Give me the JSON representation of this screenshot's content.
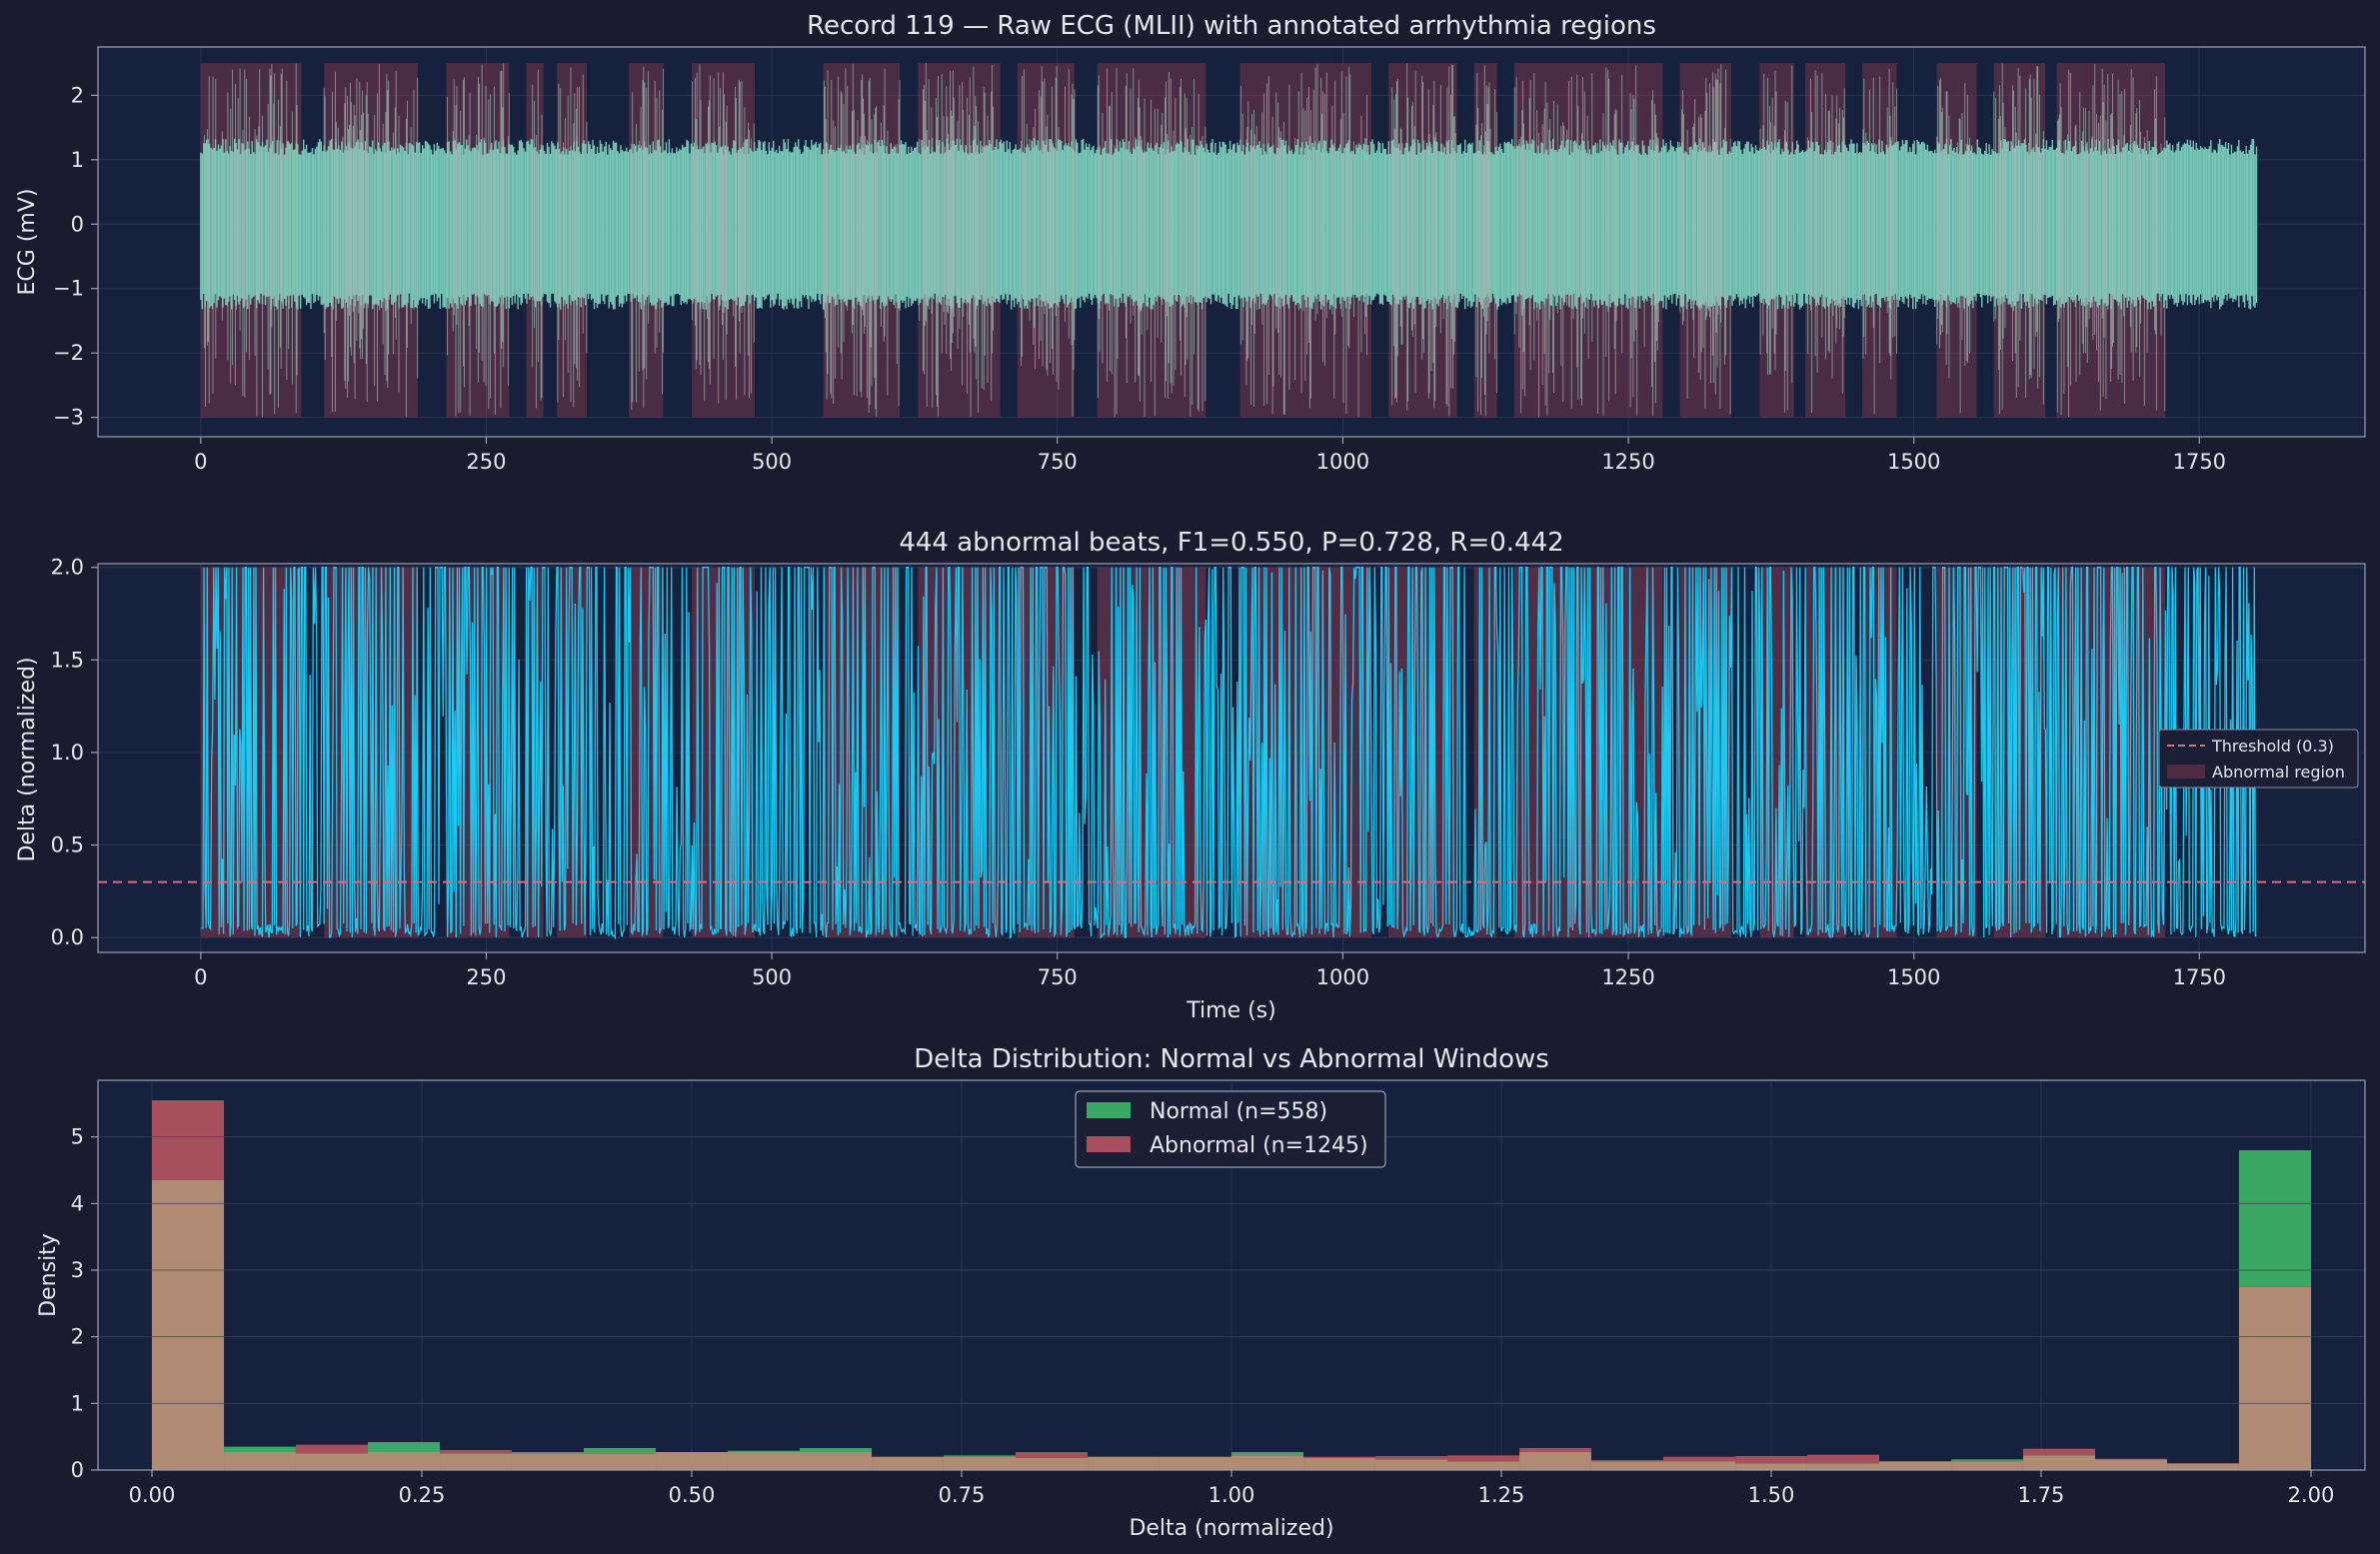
{
  "colors": {
    "figure_bg": "#1a1b2e",
    "axes_bg": "#16213e",
    "spine": "#9aa0b4",
    "grid": "#2a3452",
    "ecg": "#76c7b7",
    "delta": "#1ec8f0",
    "abnormal_region": "#8b3a4e",
    "threshold": "#e06c75",
    "normal": "#3aa765",
    "abnormal": "#a6505e",
    "overlap": "#b08a72"
  },
  "chart_data": [
    {
      "type": "line",
      "title": "Record 119 — Raw ECG (MLII) with annotated arrhythmia regions",
      "xlabel": "",
      "ylabel": "ECG (mV)",
      "xlim": [
        -90,
        1895
      ],
      "ylim": [
        -3.3,
        2.75
      ],
      "xticks": [
        "0",
        "250",
        "500",
        "750",
        "1000",
        "1250",
        "1500",
        "1750"
      ],
      "yticks": [
        "−3",
        "−2",
        "−1",
        "0",
        "1",
        "2"
      ],
      "series": [
        {
          "description": "ECG trace, 0–1800 s, baseline band about −1.2 to 1.2 mV with spikes to about ±2.4 mV in abnormal regions",
          "x_range": [
            0,
            1800
          ],
          "band": [
            -1.2,
            1.2
          ],
          "spike_range": [
            -3.0,
            2.5
          ]
        }
      ],
      "abnormal_regions_s": [
        [
          0,
          88
        ],
        [
          108,
          190
        ],
        [
          215,
          270
        ],
        [
          285,
          300
        ],
        [
          312,
          338
        ],
        [
          375,
          405
        ],
        [
          430,
          485
        ],
        [
          545,
          612
        ],
        [
          628,
          700
        ],
        [
          715,
          765
        ],
        [
          785,
          880
        ],
        [
          910,
          1025
        ],
        [
          1040,
          1100
        ],
        [
          1115,
          1135
        ],
        [
          1150,
          1280
        ],
        [
          1295,
          1340
        ],
        [
          1365,
          1395
        ],
        [
          1405,
          1440
        ],
        [
          1455,
          1485
        ],
        [
          1520,
          1555
        ],
        [
          1570,
          1615
        ],
        [
          1625,
          1720
        ]
      ],
      "grid": true
    },
    {
      "type": "line",
      "title": "444 abnormal beats, F1=0.550, P=0.728, R=0.442",
      "xlabel": "Time (s)",
      "ylabel": "Delta (normalized)",
      "xlim": [
        -90,
        1895
      ],
      "ylim": [
        -0.08,
        2.02
      ],
      "xticks": [
        "0",
        "250",
        "500",
        "750",
        "1000",
        "1250",
        "1500",
        "1750"
      ],
      "yticks": [
        "0.0",
        "0.5",
        "1.0",
        "1.5",
        "2.0"
      ],
      "threshold": 0.3,
      "legend": [
        "Threshold (0.3)",
        "Abnormal region"
      ],
      "legend_position": "right",
      "series": [
        {
          "description": "normalized delta signal, 0–1800 s, values between 0 and 2",
          "x_range": [
            0,
            1800
          ],
          "y_range": [
            0,
            2
          ]
        }
      ],
      "grid": true
    },
    {
      "type": "bar",
      "title": "Delta Distribution: Normal vs Abnormal Windows",
      "xlabel": "Delta (normalized)",
      "ylabel": "Density",
      "xlim": [
        -0.05,
        2.05
      ],
      "ylim": [
        0,
        5.85
      ],
      "xticks": [
        "0.00",
        "0.25",
        "0.50",
        "0.75",
        "1.00",
        "1.25",
        "1.50",
        "1.75",
        "2.00"
      ],
      "yticks": [
        "0",
        "1",
        "2",
        "3",
        "4",
        "5"
      ],
      "legend_position": "top-center",
      "bin_edges": [
        0.0,
        0.0667,
        0.1333,
        0.2,
        0.2667,
        0.3333,
        0.4,
        0.4667,
        0.5333,
        0.6,
        0.6667,
        0.7333,
        0.8,
        0.8667,
        0.9333,
        1.0,
        1.0667,
        1.1333,
        1.2,
        1.2667,
        1.3333,
        1.4,
        1.4667,
        1.5333,
        1.6,
        1.6667,
        1.7333,
        1.8,
        1.8667,
        1.9333,
        2.0
      ],
      "series": [
        {
          "name": "Normal (n=558)",
          "values": [
            4.35,
            0.35,
            0.25,
            0.42,
            0.25,
            0.27,
            0.33,
            0.27,
            0.29,
            0.33,
            0.2,
            0.22,
            0.18,
            0.2,
            0.2,
            0.27,
            0.18,
            0.16,
            0.13,
            0.27,
            0.13,
            0.13,
            0.1,
            0.1,
            0.13,
            0.16,
            0.22,
            0.16,
            0.1,
            4.8
          ]
        },
        {
          "name": "Abnormal (n=1245)",
          "values": [
            5.55,
            0.27,
            0.38,
            0.27,
            0.3,
            0.25,
            0.25,
            0.27,
            0.27,
            0.27,
            0.2,
            0.2,
            0.27,
            0.2,
            0.2,
            0.22,
            0.2,
            0.21,
            0.22,
            0.33,
            0.15,
            0.2,
            0.21,
            0.23,
            0.13,
            0.13,
            0.32,
            0.17,
            0.1,
            2.75
          ]
        }
      ],
      "grid": true
    }
  ]
}
